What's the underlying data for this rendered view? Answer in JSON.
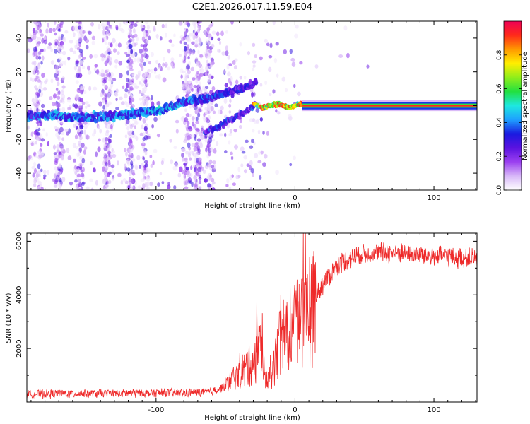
{
  "title": "C2E1.2026.017.11.59.E04",
  "colors": {
    "line": "#ee2a2a",
    "spectrogram_low": "#c9a6f2",
    "spectrogram_mid": "#6a19e0",
    "axis": "#000000"
  },
  "colorbar": {
    "label": "Normalized spectral amplitude",
    "ticks": [
      "0.0",
      "0.2",
      "0.4",
      "0.6",
      "0.8"
    ],
    "tick_values": [
      0.0,
      0.2,
      0.4,
      0.6,
      0.8
    ],
    "range": [
      0,
      1
    ],
    "stops": [
      "#ffffff",
      "#d8b8f8",
      "#9b40f0",
      "#5a12e0",
      "#1a1ae0",
      "#1ea0ff",
      "#1ee8e0",
      "#22e040",
      "#90ee1a",
      "#ffee00",
      "#ff9900",
      "#ff2a1a",
      "#ee0055"
    ]
  },
  "chart_data": [
    {
      "type": "heatmap",
      "xlabel": "Height of straight line (km)",
      "ylabel": "Frequency (Hz)",
      "xlim": [
        -193,
        131
      ],
      "ylim": [
        -50,
        50
      ],
      "x_ticks": [
        -100,
        0,
        100
      ],
      "x_tick_labels": [
        "-100",
        "0",
        "100"
      ],
      "y_ticks": [
        -40,
        -20,
        0,
        20,
        40
      ],
      "y_tick_labels": [
        "-40",
        "-20",
        "0",
        "20",
        "40"
      ],
      "ridge": [
        {
          "x": -193,
          "freq": -6,
          "amp": 0.35
        },
        {
          "x": -170,
          "freq": -6,
          "amp": 0.4
        },
        {
          "x": -150,
          "freq": -7,
          "amp": 0.4
        },
        {
          "x": -130,
          "freq": -6,
          "amp": 0.4
        },
        {
          "x": -110,
          "freq": -4,
          "amp": 0.4
        },
        {
          "x": -95,
          "freq": -2,
          "amp": 0.45
        },
        {
          "x": -80,
          "freq": 2,
          "amp": 0.4
        },
        {
          "x": -60,
          "freq": 5,
          "amp": 0.35
        },
        {
          "x": -45,
          "freq": 9,
          "amp": 0.3
        },
        {
          "x": -30,
          "freq": 13,
          "amp": 0.3
        }
      ],
      "lower_branch": [
        {
          "x": -65,
          "freq": -16
        },
        {
          "x": -50,
          "freq": -10
        },
        {
          "x": -38,
          "freq": -5
        },
        {
          "x": -28,
          "freq": 1
        }
      ],
      "stable_tone": {
        "x_start": -25,
        "x_end": 131,
        "freq": 0,
        "amp": 0.9
      }
    },
    {
      "type": "line",
      "xlabel": "Height of straight line (km)",
      "ylabel": "SNR (10 * v/v)",
      "xlim": [
        -193,
        131
      ],
      "ylim": [
        0,
        6300
      ],
      "x_ticks": [
        -100,
        0,
        100
      ],
      "x_tick_labels": [
        "-100",
        "0",
        "100"
      ],
      "y_ticks": [
        2000,
        4000,
        6000
      ],
      "y_tick_labels": [
        "2000",
        "4000",
        "6000"
      ],
      "envelope": [
        {
          "x": -193,
          "y": 300
        },
        {
          "x": -150,
          "y": 320
        },
        {
          "x": -120,
          "y": 330
        },
        {
          "x": -80,
          "y": 350
        },
        {
          "x": -60,
          "y": 380
        },
        {
          "x": -50,
          "y": 600
        },
        {
          "x": -40,
          "y": 1100
        },
        {
          "x": -30,
          "y": 1500
        },
        {
          "x": -25,
          "y": 1900
        },
        {
          "x": -20,
          "y": 800
        },
        {
          "x": -10,
          "y": 2500
        },
        {
          "x": 0,
          "y": 3000
        },
        {
          "x": 10,
          "y": 3600
        },
        {
          "x": 20,
          "y": 4400
        },
        {
          "x": 30,
          "y": 5100
        },
        {
          "x": 45,
          "y": 5500
        },
        {
          "x": 60,
          "y": 5600
        },
        {
          "x": 80,
          "y": 5550
        },
        {
          "x": 100,
          "y": 5450
        },
        {
          "x": 131,
          "y": 5350
        }
      ]
    }
  ]
}
